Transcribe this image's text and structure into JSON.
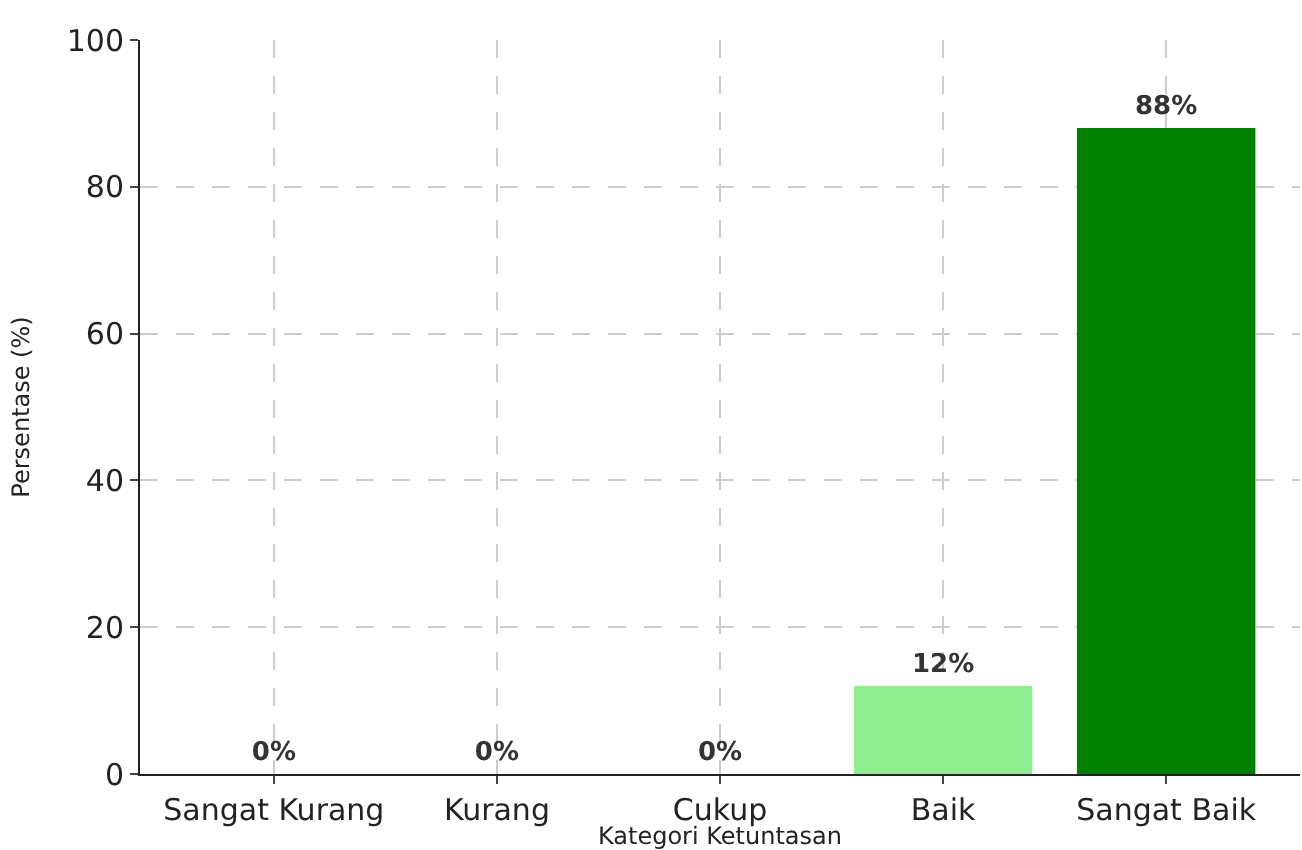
{
  "chart_data": {
    "type": "bar",
    "xlabel": "Kategori Ketuntasan",
    "ylabel": "Persentase (%)",
    "categories": [
      "Sangat Kurang",
      "Kurang",
      "Cukup",
      "Baik",
      "Sangat Baik"
    ],
    "values": [
      0,
      0,
      0,
      12,
      88
    ],
    "colors": [
      "#ff0000",
      "#ffa500",
      "#ffff00",
      "#90ee90",
      "#008000"
    ],
    "value_labels": [
      "0%",
      "0%",
      "0%",
      "12%",
      "88%"
    ],
    "ylim": [
      0,
      100
    ],
    "yticks": [
      0,
      20,
      40,
      60,
      80,
      100
    ],
    "grid": true
  }
}
